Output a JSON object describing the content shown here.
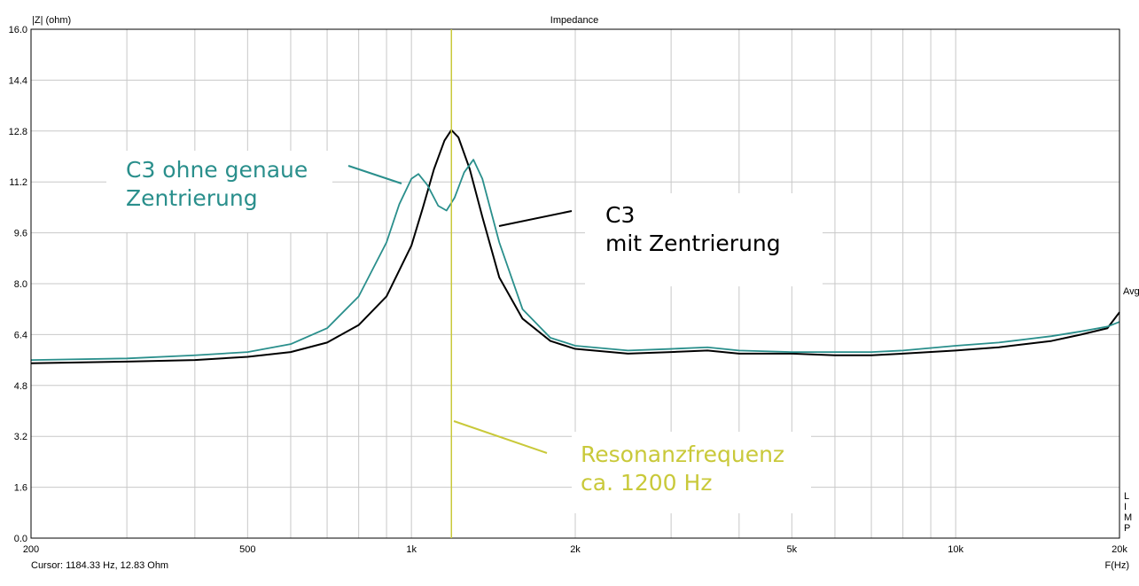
{
  "chart_data": {
    "type": "line",
    "title": "Impedance",
    "ylabel": "|Z| (ohm)",
    "xlabel": "F(Hz)",
    "xscale": "log",
    "xlim": [
      200,
      20000
    ],
    "ylim": [
      0,
      16
    ],
    "grid": true,
    "y_ticks": [
      0.0,
      1.6,
      3.2,
      4.8,
      6.4,
      8.0,
      9.6,
      11.2,
      12.8,
      14.4,
      16.0
    ],
    "y_tick_labels": [
      "0.0",
      "1.6",
      "3.2",
      "4.8",
      "6.4",
      "8.0",
      "9.6",
      "11.2",
      "12.8",
      "14.4",
      "16.0"
    ],
    "x_ticks": [
      200,
      500,
      1000,
      2000,
      5000,
      10000,
      20000
    ],
    "x_tick_labels": [
      "200",
      "500",
      "1k",
      "2k",
      "5k",
      "10k",
      "20k"
    ],
    "right_label": "Avg",
    "right_vertical_label": [
      "L",
      "I",
      "M",
      "P"
    ],
    "cursor_text": "Cursor: 1184.33 Hz, 12.83 Ohm",
    "cursor_frequency": 1184.33,
    "colors": {
      "teal": "#2a8f8c",
      "black": "#000000",
      "cursor": "#c9c93a"
    },
    "series": [
      {
        "name": "C3 mit Zentrierung",
        "color": "#000000",
        "x": [
          200,
          300,
          400,
          500,
          600,
          700,
          800,
          900,
          1000,
          1050,
          1100,
          1150,
          1184,
          1220,
          1280,
          1350,
          1450,
          1600,
          1800,
          2000,
          2500,
          3000,
          3500,
          4000,
          5000,
          6000,
          7000,
          8000,
          10000,
          12000,
          15000,
          17000,
          19000,
          20000
        ],
        "values": [
          5.5,
          5.55,
          5.6,
          5.7,
          5.85,
          6.15,
          6.7,
          7.6,
          9.2,
          10.4,
          11.6,
          12.5,
          12.83,
          12.6,
          11.6,
          10.1,
          8.2,
          6.9,
          6.2,
          5.95,
          5.8,
          5.85,
          5.9,
          5.8,
          5.8,
          5.75,
          5.75,
          5.8,
          5.9,
          6.0,
          6.2,
          6.4,
          6.6,
          7.1
        ]
      },
      {
        "name": "C3 ohne genaue Zentrierung",
        "color": "#2a8f8c",
        "x": [
          200,
          300,
          400,
          500,
          600,
          700,
          800,
          900,
          950,
          1000,
          1030,
          1070,
          1120,
          1160,
          1200,
          1250,
          1300,
          1350,
          1450,
          1600,
          1800,
          2000,
          2500,
          3000,
          3500,
          4000,
          5000,
          6000,
          7000,
          8000,
          10000,
          12000,
          15000,
          17000,
          19000,
          20000
        ],
        "values": [
          5.6,
          5.65,
          5.75,
          5.85,
          6.1,
          6.6,
          7.6,
          9.3,
          10.5,
          11.3,
          11.45,
          11.1,
          10.45,
          10.3,
          10.7,
          11.5,
          11.9,
          11.3,
          9.3,
          7.2,
          6.3,
          6.05,
          5.9,
          5.95,
          6.0,
          5.9,
          5.85,
          5.85,
          5.85,
          5.9,
          6.05,
          6.15,
          6.35,
          6.5,
          6.65,
          6.8
        ]
      }
    ],
    "annotations": [
      {
        "lines": [
          "C3 ohne genaue",
          "Zentrierung"
        ],
        "color": "#2a8f8c"
      },
      {
        "lines": [
          "C3",
          "mit Zentrierung"
        ],
        "color": "#000000"
      },
      {
        "lines": [
          "Resonanzfrequenz",
          "ca. 1200 Hz"
        ],
        "color": "#c9c93a"
      }
    ]
  }
}
